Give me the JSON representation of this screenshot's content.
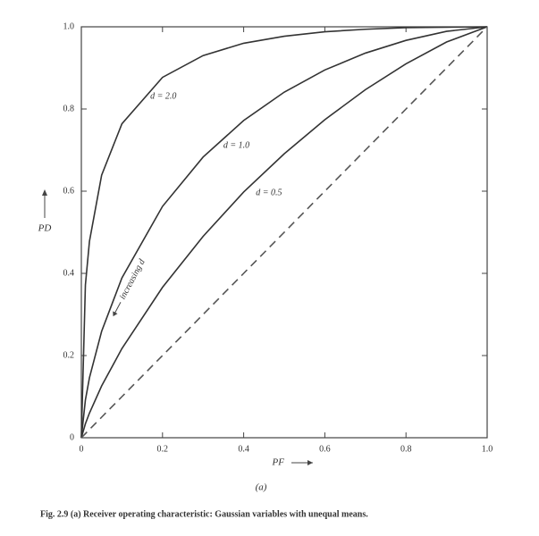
{
  "chart_data": {
    "type": "line",
    "x_label": "PF",
    "y_label": "PD",
    "annotation": "increasing d",
    "subtitle": "(a)",
    "caption": "Fig. 2.9 (a) Receiver operating characteristic: Gaussian variables with unequal means.",
    "x": [
      0,
      0.01,
      0.02,
      0.05,
      0.1,
      0.2,
      0.3,
      0.4,
      0.5,
      0.6,
      0.7,
      0.8,
      0.9,
      1
    ],
    "series": [
      {
        "name": "d = 2.0",
        "color": "#333333",
        "values": [
          0,
          0.372,
          0.478,
          0.639,
          0.764,
          0.877,
          0.93,
          0.96,
          0.977,
          0.988,
          0.994,
          0.998,
          0.999,
          1
        ]
      },
      {
        "name": "d = 1.0",
        "color": "#333333",
        "values": [
          0,
          0.092,
          0.146,
          0.259,
          0.389,
          0.563,
          0.683,
          0.772,
          0.841,
          0.895,
          0.936,
          0.967,
          0.989,
          1
        ]
      },
      {
        "name": "d = 0.5",
        "color": "#333333",
        "values": [
          0,
          0.034,
          0.06,
          0.126,
          0.217,
          0.366,
          0.49,
          0.598,
          0.691,
          0.774,
          0.847,
          0.91,
          0.963,
          1
        ]
      },
      {
        "color": "#555555",
        "dashed": true,
        "values": [
          0,
          0.01,
          0.02,
          0.05,
          0.1,
          0.2,
          0.3,
          0.4,
          0.5,
          0.6,
          0.7,
          0.8,
          0.9,
          1
        ]
      }
    ],
    "xlim": [
      0,
      1
    ],
    "ylim": [
      0,
      1
    ],
    "xticks": [
      0,
      0.2,
      0.4,
      0.6,
      0.8,
      {
        "value": 1,
        "label": "1.0"
      }
    ],
    "yticks": [
      0,
      0.2,
      0.4,
      0.6,
      0.8,
      {
        "value": 1,
        "label": "1.0"
      }
    ],
    "grid": false
  }
}
